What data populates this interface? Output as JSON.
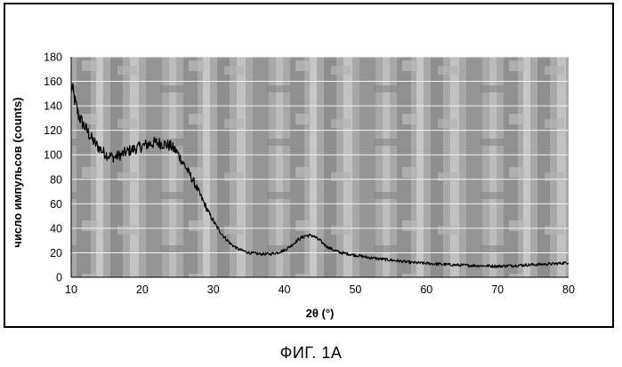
{
  "figure_caption": "ФИГ. 1А",
  "chart_data": {
    "type": "line",
    "xlabel": "2θ (°)",
    "ylabel": "число импульсов  (counts)",
    "xlim": [
      10,
      80
    ],
    "ylim": [
      0,
      180
    ],
    "x_ticks": [
      10,
      20,
      30,
      40,
      50,
      60,
      70,
      80
    ],
    "y_ticks": [
      0,
      20,
      40,
      60,
      80,
      100,
      120,
      140,
      160,
      180
    ],
    "grid": "horizontal",
    "legend": "none",
    "plot_background": "mottled gray (scanned)",
    "line_color": "#000000",
    "series": [
      {
        "x": [
          10,
          10.3,
          10.6,
          11,
          11.5,
          12,
          12.5,
          13,
          14,
          15,
          16,
          17,
          18,
          19,
          20,
          21,
          22,
          23,
          24,
          24.8,
          25.5,
          26.5,
          27.5,
          28.5,
          29.5,
          30.5,
          31.5,
          32.5,
          33.5,
          35,
          36.5,
          38,
          39,
          40,
          41,
          42,
          43,
          44,
          45,
          46,
          47,
          48,
          50,
          52,
          55,
          58,
          61,
          64,
          67,
          70,
          72,
          74,
          76,
          78,
          80
        ],
        "y": [
          157,
          150,
          142,
          133,
          127,
          122,
          117,
          112,
          105,
          100,
          98,
          100,
          103,
          105,
          107,
          109,
          110,
          109,
          107,
          103,
          96,
          86,
          75,
          63,
          51,
          41,
          33,
          27,
          23,
          20,
          19,
          19,
          20,
          22,
          26,
          31,
          34,
          34,
          30,
          25,
          22,
          20,
          18,
          16,
          14,
          12,
          11,
          10,
          9.5,
          9,
          9.5,
          10,
          10.5,
          11,
          12
        ]
      }
    ]
  }
}
